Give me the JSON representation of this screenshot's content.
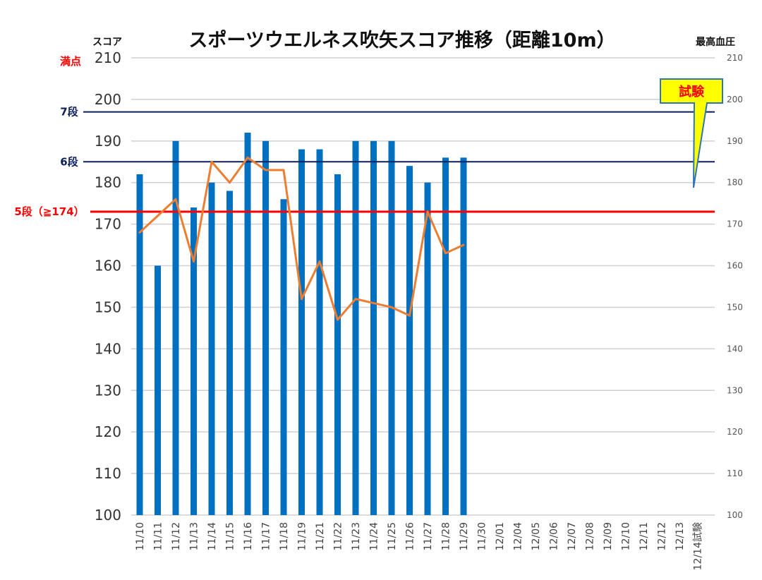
{
  "chart_data": {
    "type": "bar",
    "title": "スポーツウエルネス吹矢スコア推移（距離10m）",
    "ylabel": "スコア",
    "y2label": "最高血圧",
    "ylim": [
      100,
      210
    ],
    "y2lim": [
      100,
      210
    ],
    "grid": true,
    "categories": [
      "11/10",
      "11/11",
      "11/12",
      "11/13",
      "11/14",
      "11/15",
      "11/16",
      "11/17",
      "11/18",
      "11/19",
      "11/21",
      "11/22",
      "11/23",
      "11/24",
      "11/25",
      "11/26",
      "11/27",
      "11/28",
      "11/29",
      "11/30",
      "12/01",
      "12/04",
      "12/05",
      "12/06",
      "12/07",
      "12/08",
      "12/09",
      "12/10",
      "12/11",
      "12/12",
      "12/13",
      "12/14試験"
    ],
    "series": [
      {
        "name": "スコア",
        "kind": "bar",
        "axis": "left",
        "color": "#0070c0",
        "values": [
          182,
          160,
          190,
          174,
          180,
          178,
          192,
          190,
          176,
          188,
          188,
          182,
          190,
          190,
          190,
          184,
          180,
          186,
          186,
          null,
          null,
          null,
          null,
          null,
          null,
          null,
          null,
          null,
          null,
          null,
          null,
          null
        ]
      },
      {
        "name": "最高血圧",
        "kind": "line",
        "axis": "right",
        "color": "#ed7d31",
        "values": [
          168,
          172,
          176,
          161,
          185,
          180,
          186,
          183,
          183,
          152,
          161,
          147,
          152,
          151,
          150,
          148,
          173,
          163,
          165,
          null,
          null,
          null,
          null,
          null,
          null,
          null,
          null,
          null,
          null,
          null,
          null,
          null
        ]
      }
    ],
    "reference_lines": [
      {
        "label": "7段",
        "value": 197,
        "color": "#0b1f5c"
      },
      {
        "label": "6段",
        "value": 185,
        "color": "#0b1f5c"
      },
      {
        "label": "5段（≧174）",
        "value": 173,
        "color": "#ff0000"
      }
    ],
    "top_label": {
      "text": "満点",
      "color": "#ff0000"
    },
    "callout": {
      "text": "試験",
      "fill": "#ffff00",
      "stroke": "#2e75b6",
      "text_color": "#ff0000"
    },
    "left_ticks": [
      "100",
      "110",
      "120",
      "130",
      "140",
      "150",
      "160",
      "170",
      "180",
      "190",
      "200",
      "210"
    ],
    "right_ticks": [
      "100",
      "110",
      "120",
      "130",
      "140",
      "150",
      "160",
      "170",
      "180",
      "190",
      "200",
      "210"
    ]
  }
}
